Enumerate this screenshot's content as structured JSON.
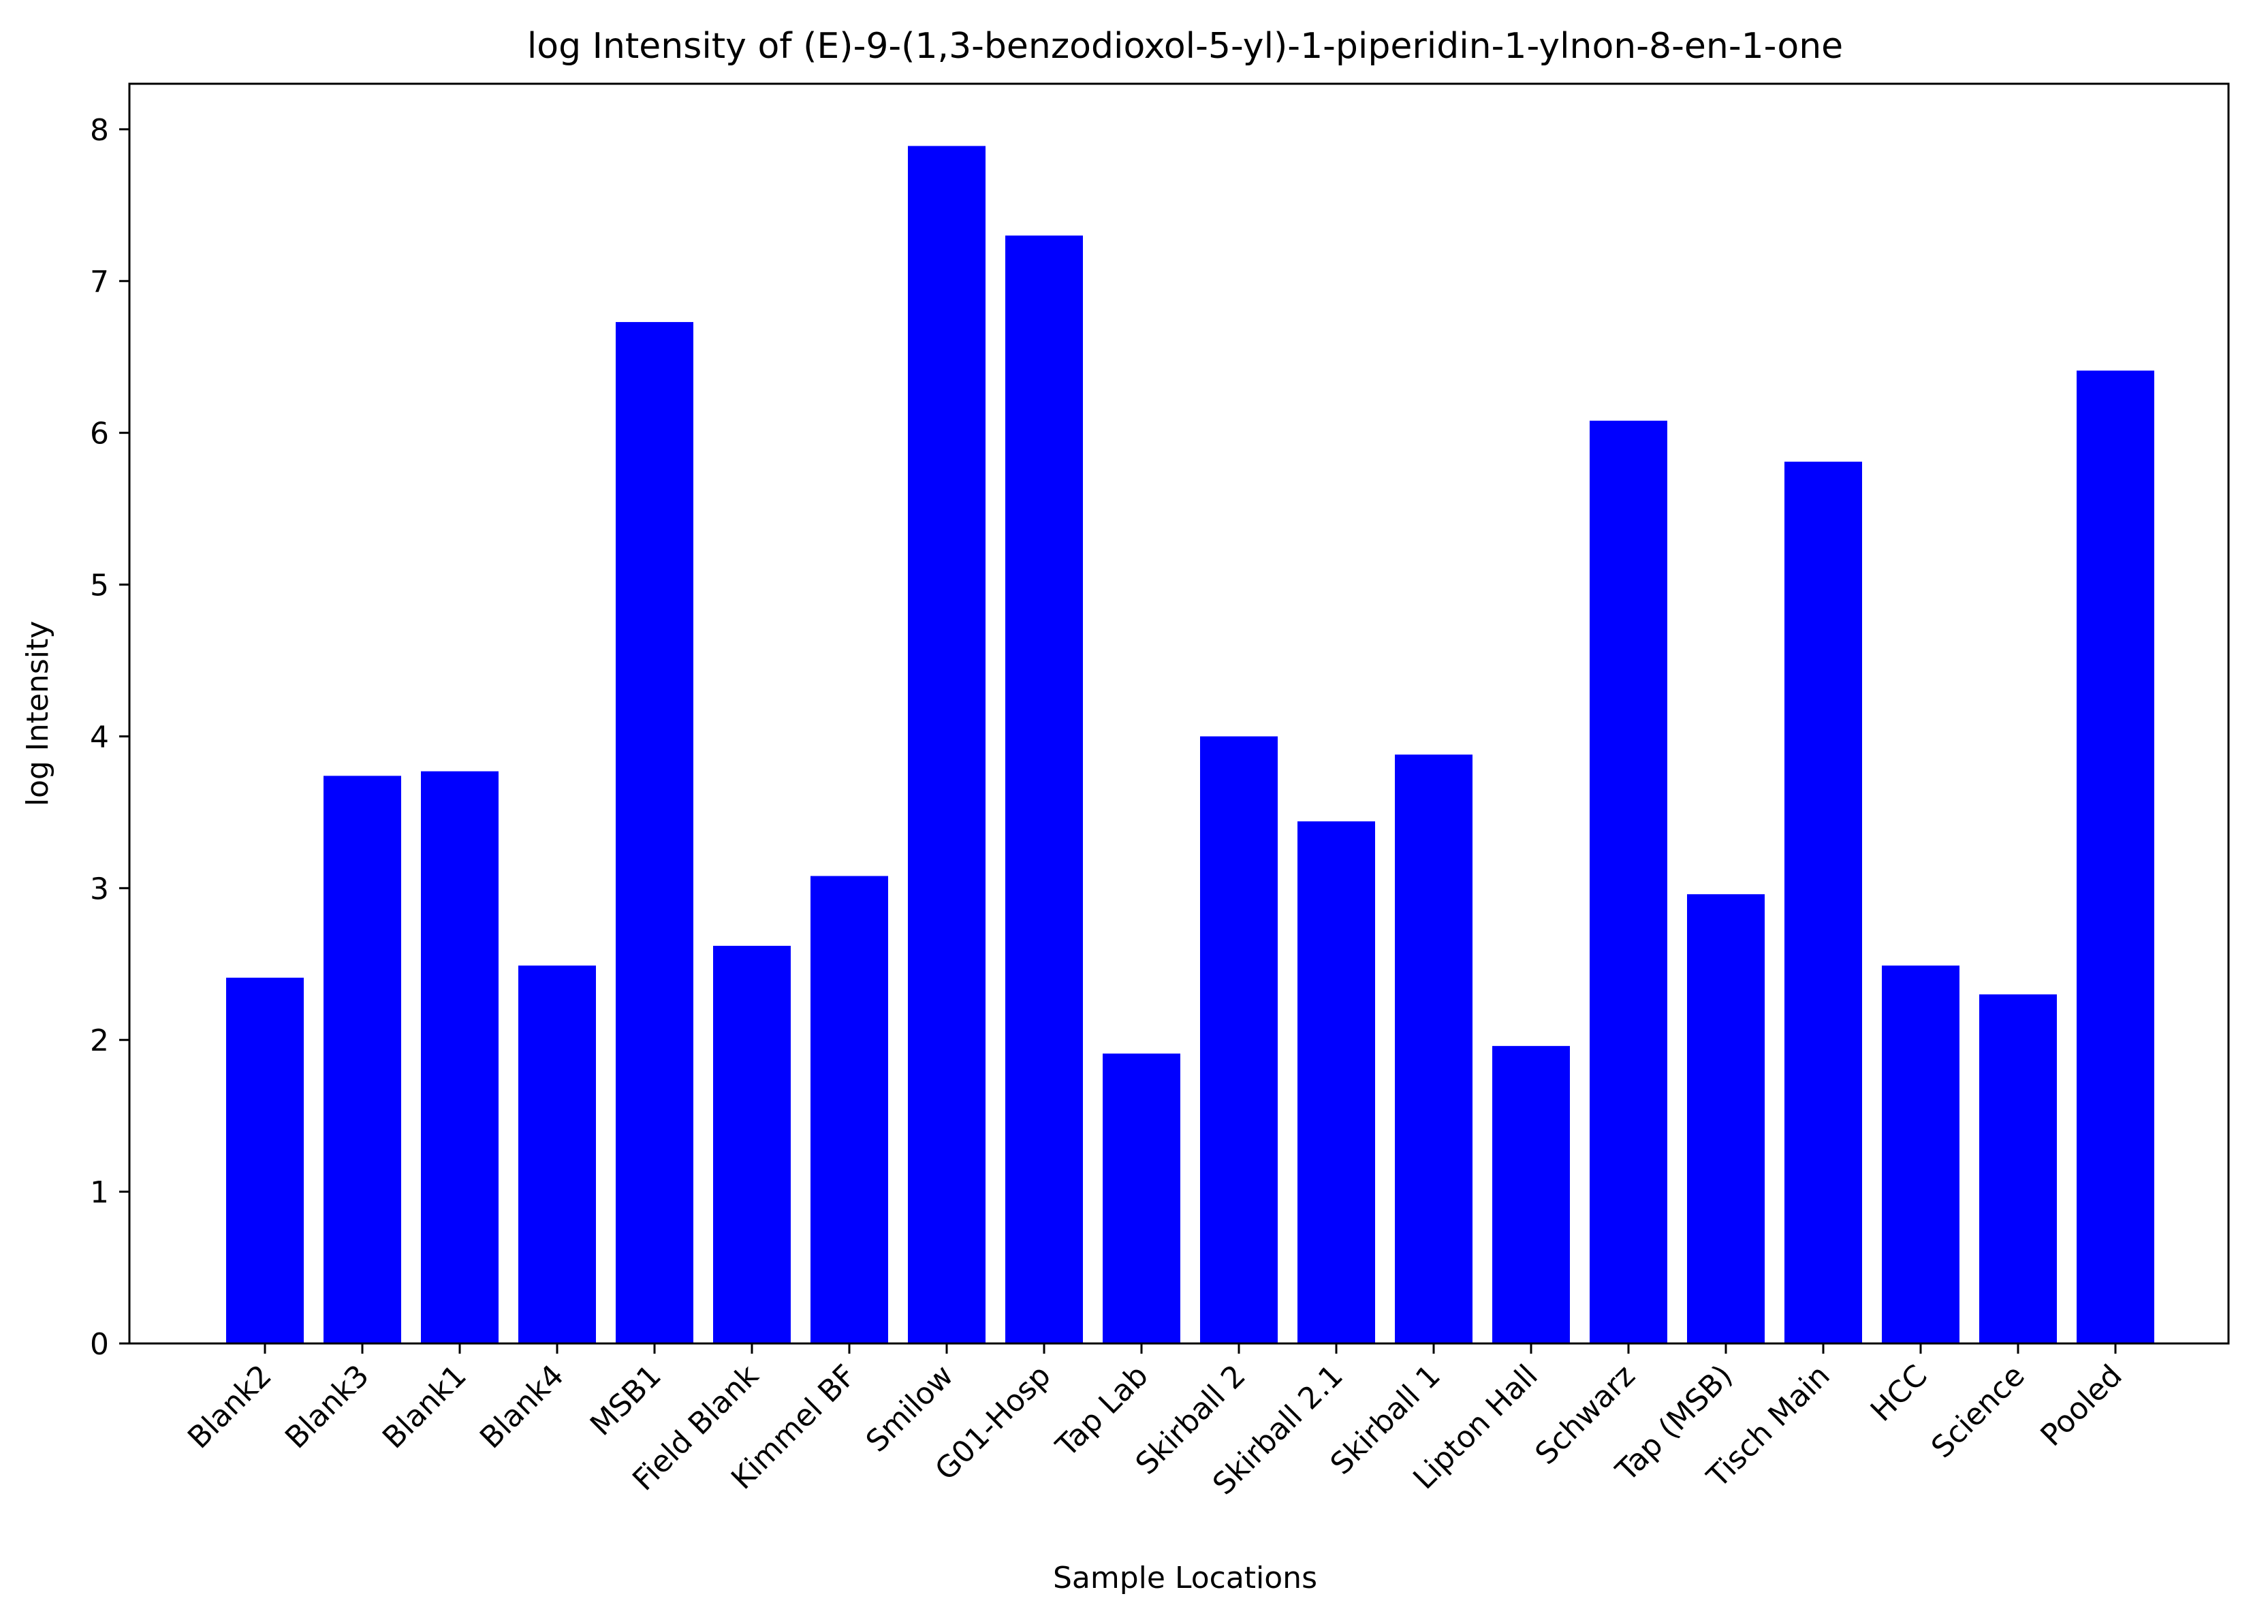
{
  "chart_data": {
    "type": "bar",
    "title": "log Intensity of (E)-9-(1,3-benzodioxol-5-yl)-1-piperidin-1-ylnon-8-en-1-one",
    "xlabel": "Sample Locations",
    "ylabel": "log Intensity",
    "categories": [
      "Blank2",
      "Blank3",
      "Blank1",
      "Blank4",
      "MSB1",
      "Field Blank",
      "Kimmel BF",
      "Smilow",
      "G01-Hosp",
      "Tap Lab",
      "Skirball 2",
      "Skirball 2.1",
      "Skirball 1",
      "Lipton Hall",
      "Schwarz",
      "Tap (MSB)",
      "Tisch Main",
      "HCC",
      "Science",
      "Pooled"
    ],
    "values": [
      2.41,
      3.74,
      3.77,
      2.49,
      6.73,
      2.62,
      3.08,
      7.89,
      7.3,
      1.91,
      4.0,
      3.44,
      3.88,
      1.96,
      6.08,
      2.96,
      5.81,
      2.49,
      2.3,
      6.41
    ],
    "yticks": [
      "0",
      "1",
      "2",
      "3",
      "4",
      "5",
      "6",
      "7",
      "8"
    ],
    "ylim": [
      0,
      8.3
    ],
    "bar_color": "#0000ff",
    "grid": false,
    "legend": "none"
  }
}
